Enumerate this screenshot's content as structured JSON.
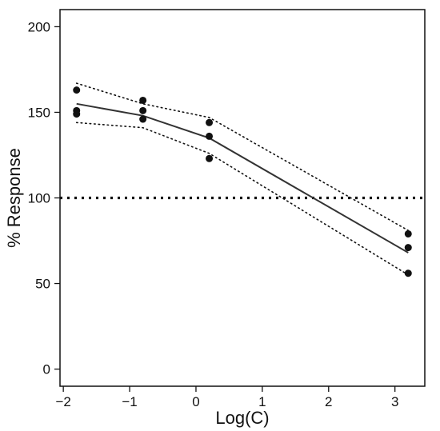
{
  "chart_data": {
    "type": "scatter",
    "title": "",
    "xlabel": "Log(C)",
    "ylabel": "% Response",
    "xlim": [
      -2.05,
      3.45
    ],
    "ylim": [
      -10,
      210
    ],
    "x_ticks": [
      -2,
      -1,
      0,
      1,
      2,
      3
    ],
    "x_tick_labels": [
      "−2",
      "−1",
      "0",
      "1",
      "2",
      "3"
    ],
    "y_ticks": [
      0,
      50,
      100,
      150,
      200
    ],
    "y_tick_labels": [
      "0",
      "50",
      "100",
      "150",
      "200"
    ],
    "grid": false,
    "points": [
      {
        "x": -1.8,
        "y": 163
      },
      {
        "x": -1.8,
        "y": 151
      },
      {
        "x": -1.8,
        "y": 149
      },
      {
        "x": -0.8,
        "y": 157
      },
      {
        "x": -0.8,
        "y": 151
      },
      {
        "x": -0.8,
        "y": 146
      },
      {
        "x": 0.2,
        "y": 144
      },
      {
        "x": 0.2,
        "y": 136
      },
      {
        "x": 0.2,
        "y": 123
      },
      {
        "x": 3.2,
        "y": 79
      },
      {
        "x": 3.2,
        "y": 71
      },
      {
        "x": 3.2,
        "y": 56
      }
    ],
    "fit_line": {
      "x": [
        -1.8,
        -0.8,
        0.2,
        3.2
      ],
      "y": [
        155,
        148,
        135,
        68
      ]
    },
    "upper_band": {
      "x": [
        -1.8,
        -0.8,
        0.2,
        3.2
      ],
      "y": [
        167,
        155,
        147,
        81
      ]
    },
    "lower_band": {
      "x": [
        -1.8,
        -0.8,
        0.2,
        3.2
      ],
      "y": [
        144,
        141,
        126,
        55
      ]
    },
    "reference_line_y": 100,
    "colors": {
      "points": "#111111",
      "fit_line": "#333333",
      "band": "#111111",
      "reference": "#111111"
    }
  }
}
